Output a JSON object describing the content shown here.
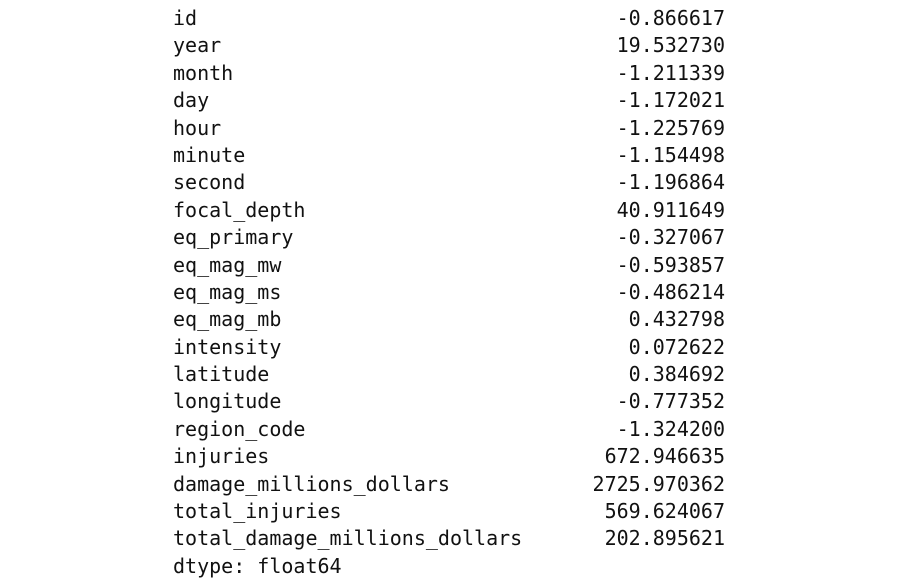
{
  "series": {
    "rows": [
      {
        "label": "id",
        "value": "-0.866617"
      },
      {
        "label": "year",
        "value": "19.532730"
      },
      {
        "label": "month",
        "value": "-1.211339"
      },
      {
        "label": "day",
        "value": "-1.172021"
      },
      {
        "label": "hour",
        "value": "-1.225769"
      },
      {
        "label": "minute",
        "value": "-1.154498"
      },
      {
        "label": "second",
        "value": "-1.196864"
      },
      {
        "label": "focal_depth",
        "value": "40.911649"
      },
      {
        "label": "eq_primary",
        "value": "-0.327067"
      },
      {
        "label": "eq_mag_mw",
        "value": "-0.593857"
      },
      {
        "label": "eq_mag_ms",
        "value": "-0.486214"
      },
      {
        "label": "eq_mag_mb",
        "value": "0.432798"
      },
      {
        "label": "intensity",
        "value": "0.072622"
      },
      {
        "label": "latitude",
        "value": "0.384692"
      },
      {
        "label": "longitude",
        "value": "-0.777352"
      },
      {
        "label": "region_code",
        "value": "-1.324200"
      },
      {
        "label": "injuries",
        "value": "672.946635"
      },
      {
        "label": "damage_millions_dollars",
        "value": "2725.970362"
      },
      {
        "label": "total_injuries",
        "value": "569.624067"
      },
      {
        "label": "total_damage_millions_dollars",
        "value": "202.895621"
      }
    ],
    "dtype_line": "dtype: float64"
  }
}
